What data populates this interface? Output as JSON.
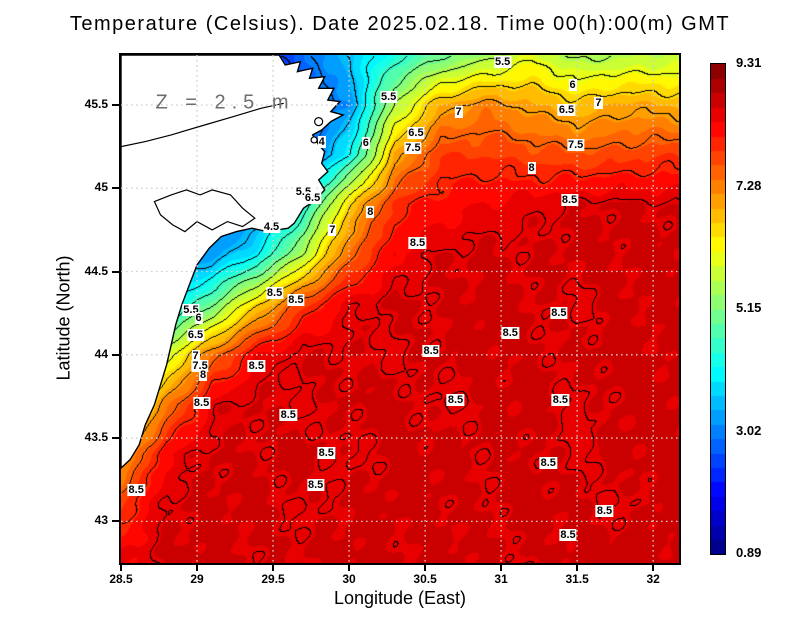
{
  "chart_data": {
    "type": "heatmap",
    "title": "Temperature (Celsius). Date 2025.02.18. Time 00(h):00(m) GMT",
    "xlabel": "Longitude (East)",
    "ylabel": "Latitude (North)",
    "annotation": "Z = 2.5 m",
    "xlim": [
      28.5,
      32.17
    ],
    "ylim": [
      42.75,
      45.8
    ],
    "xticks": [
      "28.5",
      "29",
      "29.5",
      "30",
      "30.5",
      "31",
      "31.5",
      "32"
    ],
    "yticks": [
      "43",
      "43.5",
      "44",
      "44.5",
      "45",
      "45.5"
    ],
    "grid_on": true,
    "contour_interval": 0.5,
    "fill_bands": 34,
    "grid_lon": [
      28.5,
      28.8,
      29.1,
      29.4,
      29.7,
      30.0,
      30.3,
      30.6,
      30.9,
      31.2,
      31.5,
      31.8,
      32.1,
      32.4
    ],
    "grid_lat": [
      45.8,
      45.5,
      45.2,
      44.9,
      44.6,
      44.3,
      44.0,
      43.7,
      43.4,
      43.1,
      42.8
    ],
    "temperature": [
      [
        2.0,
        2.0,
        2.0,
        2.2,
        2.8,
        3.6,
        4.3,
        4.9,
        5.3,
        5.9,
        5.4,
        5.5,
        5.6,
        5.8
      ],
      [
        2.0,
        2.0,
        2.0,
        2.0,
        2.4,
        3.2,
        5.5,
        6.8,
        7.2,
        6.9,
        6.6,
        6.9,
        6.8,
        6.7
      ],
      [
        2.2,
        2.2,
        2.2,
        2.4,
        2.8,
        4.0,
        6.8,
        7.8,
        7.8,
        7.7,
        7.6,
        7.7,
        7.8,
        7.8
      ],
      [
        2.5,
        2.5,
        2.5,
        3.0,
        4.2,
        6.5,
        7.9,
        8.2,
        8.35,
        8.45,
        8.55,
        8.6,
        8.55,
        8.6
      ],
      [
        3.0,
        3.0,
        3.2,
        4.0,
        5.6,
        7.4,
        8.3,
        8.55,
        8.6,
        8.55,
        8.65,
        8.6,
        8.65,
        8.6
      ],
      [
        3.5,
        3.8,
        5.0,
        6.5,
        7.8,
        8.45,
        8.6,
        8.55,
        8.65,
        8.6,
        8.45,
        8.62,
        8.6,
        8.65
      ],
      [
        4.5,
        5.8,
        7.3,
        8.35,
        8.6,
        8.55,
        8.45,
        8.6,
        8.65,
        8.55,
        8.6,
        8.65,
        8.6,
        8.55
      ],
      [
        5.5,
        7.2,
        8.45,
        8.6,
        8.45,
        8.6,
        8.65,
        8.45,
        8.6,
        8.65,
        8.45,
        8.6,
        8.65,
        8.6
      ],
      [
        6.8,
        8.3,
        8.6,
        8.55,
        8.65,
        8.45,
        8.6,
        8.65,
        8.55,
        8.6,
        8.45,
        8.65,
        8.6,
        8.7
      ],
      [
        7.8,
        8.55,
        8.6,
        8.65,
        8.45,
        8.6,
        8.65,
        8.6,
        8.55,
        8.65,
        8.6,
        8.45,
        8.7,
        8.75
      ],
      [
        8.3,
        8.6,
        8.65,
        8.55,
        8.6,
        8.65,
        8.55,
        8.65,
        8.6,
        8.55,
        8.65,
        8.7,
        8.6,
        8.8
      ]
    ],
    "colorbar": {
      "min": 0.89,
      "max": 9.31,
      "colormap": "jet",
      "steps": 34,
      "labels": [
        "9.31",
        "7.28",
        "5.15",
        "3.02",
        "0.89"
      ]
    },
    "contour_labels": [
      {
        "v": "5.5",
        "lon": 31.01,
        "lat": 45.76
      },
      {
        "v": "6",
        "lon": 31.47,
        "lat": 45.62
      },
      {
        "v": "5.5",
        "lon": 30.26,
        "lat": 45.55
      },
      {
        "v": "7",
        "lon": 30.72,
        "lat": 45.46
      },
      {
        "v": "6.5",
        "lon": 31.43,
        "lat": 45.47
      },
      {
        "v": "7",
        "lon": 31.64,
        "lat": 45.51
      },
      {
        "v": "6",
        "lon": 30.11,
        "lat": 45.27
      },
      {
        "v": "4",
        "lon": 29.82,
        "lat": 45.28
      },
      {
        "v": "6.5",
        "lon": 30.44,
        "lat": 45.33
      },
      {
        "v": "7.5",
        "lon": 30.42,
        "lat": 45.24
      },
      {
        "v": "7.5",
        "lon": 31.49,
        "lat": 45.26
      },
      {
        "v": "8",
        "lon": 31.2,
        "lat": 45.12
      },
      {
        "v": "8",
        "lon": 30.14,
        "lat": 44.86
      },
      {
        "v": "8.5",
        "lon": 31.45,
        "lat": 44.93
      },
      {
        "v": "5.5",
        "lon": 29.7,
        "lat": 44.98
      },
      {
        "v": "6.5",
        "lon": 29.76,
        "lat": 44.94
      },
      {
        "v": "4.5",
        "lon": 29.49,
        "lat": 44.77
      },
      {
        "v": "7",
        "lon": 29.89,
        "lat": 44.75
      },
      {
        "v": "8.5",
        "lon": 30.45,
        "lat": 44.67
      },
      {
        "v": "8.5",
        "lon": 29.51,
        "lat": 44.37
      },
      {
        "v": "8.5",
        "lon": 29.65,
        "lat": 44.33
      },
      {
        "v": "8.5",
        "lon": 31.38,
        "lat": 44.25
      },
      {
        "v": "8.5",
        "lon": 31.06,
        "lat": 44.13
      },
      {
        "v": "5.5",
        "lon": 28.96,
        "lat": 44.27
      },
      {
        "v": "6",
        "lon": 29.01,
        "lat": 44.22
      },
      {
        "v": "6.5",
        "lon": 28.99,
        "lat": 44.12
      },
      {
        "v": "7",
        "lon": 28.99,
        "lat": 43.99
      },
      {
        "v": "7.5",
        "lon": 29.02,
        "lat": 43.93
      },
      {
        "v": "8",
        "lon": 29.04,
        "lat": 43.88
      },
      {
        "v": "8.5",
        "lon": 29.39,
        "lat": 43.93
      },
      {
        "v": "8.5",
        "lon": 30.54,
        "lat": 44.02
      },
      {
        "v": "8.5",
        "lon": 29.03,
        "lat": 43.71
      },
      {
        "v": "8.5",
        "lon": 29.6,
        "lat": 43.64
      },
      {
        "v": "8.5",
        "lon": 30.7,
        "lat": 43.73
      },
      {
        "v": "8.5",
        "lon": 31.39,
        "lat": 43.73
      },
      {
        "v": "8.5",
        "lon": 29.85,
        "lat": 43.41
      },
      {
        "v": "8.5",
        "lon": 31.31,
        "lat": 43.35
      },
      {
        "v": "8.5",
        "lon": 29.78,
        "lat": 43.22
      },
      {
        "v": "8.5",
        "lon": 28.6,
        "lat": 43.19
      },
      {
        "v": "8.5",
        "lon": 31.68,
        "lat": 43.06
      },
      {
        "v": "8.5",
        "lon": 31.44,
        "lat": 42.92
      }
    ],
    "land": {
      "coast": [
        [
          28.5,
          45.8
        ],
        [
          29.54,
          45.8
        ],
        [
          29.58,
          45.74
        ],
        [
          29.68,
          45.76
        ],
        [
          29.66,
          45.7
        ],
        [
          29.76,
          45.72
        ],
        [
          29.74,
          45.66
        ],
        [
          29.84,
          45.67
        ],
        [
          29.8,
          45.6
        ],
        [
          29.9,
          45.6
        ],
        [
          29.86,
          45.53
        ],
        [
          29.94,
          45.52
        ],
        [
          29.88,
          45.46
        ],
        [
          29.96,
          45.44
        ],
        [
          29.88,
          45.4
        ],
        [
          29.82,
          45.35
        ],
        [
          29.76,
          45.32
        ],
        [
          29.8,
          45.26
        ],
        [
          29.84,
          45.22
        ],
        [
          29.82,
          45.15
        ],
        [
          29.86,
          45.1
        ],
        [
          29.8,
          45.05
        ],
        [
          29.84,
          44.99
        ],
        [
          29.78,
          44.93
        ],
        [
          29.7,
          44.88
        ],
        [
          29.64,
          44.79
        ],
        [
          29.6,
          44.76
        ],
        [
          29.46,
          44.74
        ],
        [
          29.36,
          44.76
        ],
        [
          29.26,
          44.74
        ],
        [
          29.16,
          44.71
        ],
        [
          29.08,
          44.64
        ],
        [
          29.0,
          44.54
        ],
        [
          28.95,
          44.42
        ],
        [
          28.9,
          44.3
        ],
        [
          28.86,
          44.18
        ],
        [
          28.83,
          44.06
        ],
        [
          28.8,
          43.94
        ],
        [
          28.76,
          43.82
        ],
        [
          28.72,
          43.7
        ],
        [
          28.66,
          43.58
        ],
        [
          28.62,
          43.46
        ],
        [
          28.56,
          43.37
        ],
        [
          28.5,
          43.32
        ]
      ],
      "lagoon": [
        [
          28.72,
          44.92
        ],
        [
          28.83,
          44.96
        ],
        [
          28.93,
          44.99
        ],
        [
          29.02,
          44.96
        ],
        [
          29.1,
          44.99
        ],
        [
          29.22,
          44.96
        ],
        [
          29.3,
          44.88
        ],
        [
          29.38,
          44.82
        ],
        [
          29.3,
          44.77
        ],
        [
          29.2,
          44.8
        ],
        [
          29.1,
          44.75
        ],
        [
          29.0,
          44.8
        ],
        [
          28.92,
          44.74
        ],
        [
          28.84,
          44.78
        ],
        [
          28.76,
          44.84
        ]
      ],
      "rivers": [
        [
          [
            28.5,
            45.25
          ],
          [
            28.66,
            45.28
          ],
          [
            28.83,
            45.32
          ],
          [
            29.05,
            45.38
          ],
          [
            29.24,
            45.43
          ],
          [
            29.42,
            45.48
          ],
          [
            29.57,
            45.51
          ]
        ]
      ],
      "islands": [
        {
          "lon": 29.8,
          "lat": 45.4,
          "r": 4
        },
        {
          "lon": 29.77,
          "lat": 45.29,
          "r": 3
        }
      ]
    }
  }
}
